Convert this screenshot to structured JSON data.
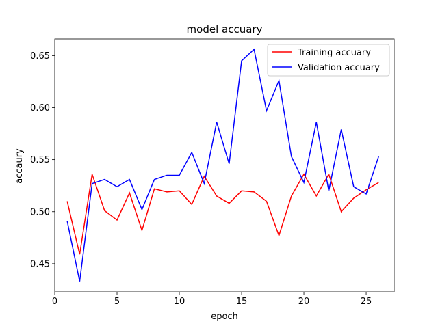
{
  "chart_data": {
    "type": "line",
    "title": "model accuary",
    "xlabel": "epoch",
    "ylabel": "accaury",
    "xlim": [
      0,
      27.25
    ],
    "ylim": [
      0.423,
      0.666
    ],
    "xticks": [
      0,
      5,
      10,
      15,
      20,
      25
    ],
    "yticks": [
      0.45,
      0.5,
      0.55,
      0.6,
      0.65
    ],
    "xtick_labels": [
      "0",
      "5",
      "10",
      "15",
      "20",
      "25"
    ],
    "ytick_labels": [
      "0.45",
      "0.50",
      "0.55",
      "0.60",
      "0.65"
    ],
    "legend_position": "top-right",
    "grid": false,
    "x": [
      1,
      2,
      3,
      4,
      5,
      6,
      7,
      8,
      9,
      10,
      11,
      12,
      13,
      14,
      15,
      16,
      17,
      18,
      19,
      20,
      21,
      22,
      23,
      24,
      25,
      26
    ],
    "series": [
      {
        "name": "Training accuary",
        "color": "#ff0000",
        "values": [
          0.51,
          0.459,
          0.536,
          0.501,
          0.492,
          0.518,
          0.482,
          0.522,
          0.519,
          0.52,
          0.507,
          0.534,
          0.515,
          0.508,
          0.52,
          0.519,
          0.51,
          0.477,
          0.515,
          0.536,
          0.515,
          0.536,
          0.5,
          0.513,
          0.521,
          0.528
        ]
      },
      {
        "name": "Validation accuary",
        "color": "#0000ff",
        "values": [
          0.491,
          0.433,
          0.527,
          0.531,
          0.524,
          0.531,
          0.502,
          0.531,
          0.535,
          0.535,
          0.557,
          0.527,
          0.586,
          0.546,
          0.645,
          0.656,
          0.597,
          0.626,
          0.553,
          0.528,
          0.586,
          0.52,
          0.579,
          0.524,
          0.517,
          0.553
        ]
      }
    ]
  }
}
